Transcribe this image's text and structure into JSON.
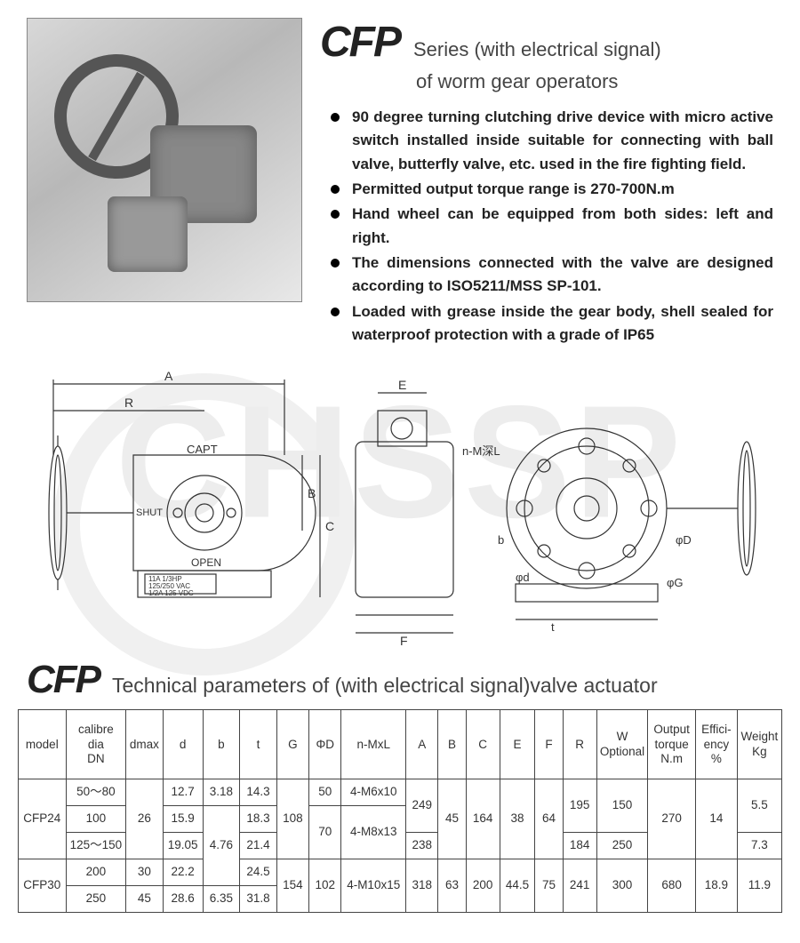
{
  "header": {
    "brand": "CFP",
    "title_line1": "Series (with electrical signal)",
    "title_line2": "of worm gear operators"
  },
  "features": [
    "90 degree turning clutching drive device with micro active switch installed inside suitable for connecting with ball valve, butterfly valve, etc. used in the fire fighting field.",
    "Permitted output torque range is 270-700N.m",
    "Hand wheel can be equipped from both sides: left and right.",
    "The dimensions connected with the valve are designed according to ISO5211/MSS SP-101.",
    "Loaded with grease inside the gear body, shell sealed for waterproof protection with a grade of IP65"
  ],
  "watermark": "CHSSP",
  "diagram": {
    "labels": {
      "A": "A",
      "R": "R",
      "B": "B",
      "C": "C",
      "E": "E",
      "F": "F",
      "capt": "CAPT",
      "shut": "SHUT",
      "open": "OPEN",
      "nML": "n-M深L",
      "phiD": "φD",
      "phid": "φd",
      "phiG": "φG",
      "b": "b",
      "t": "t",
      "plate1": "11A 1/3HP",
      "plate2": "125/250 VAC",
      "plate3": "1/2A 125 VDC"
    },
    "line_color": "#333333",
    "line_width": 1.2
  },
  "table": {
    "heading_brand": "CFP",
    "heading_text": "Technical parameters of (with electrical signal)valve actuator",
    "columns": [
      "model",
      "calibre dia DN",
      "dmax",
      "d",
      "b",
      "t",
      "G",
      "ΦD",
      "n-MxL",
      "A",
      "B",
      "C",
      "E",
      "F",
      "R",
      "W Optional",
      "Output torque N.m",
      "Effici-ency %",
      "Weight Kg"
    ],
    "col_widths_pct": [
      6.2,
      7.8,
      4.8,
      5.2,
      4.8,
      4.8,
      4.2,
      4.2,
      8.4,
      4.2,
      3.6,
      4.4,
      4.6,
      3.6,
      4.4,
      6.4,
      6.2,
      5.4,
      5.8
    ],
    "rows_raw": [
      [
        "CFP24",
        "50～80",
        "26",
        "12.7",
        "3.18",
        "14.3",
        "108",
        "50",
        "4-M6x10",
        "249",
        "45",
        "164",
        "38",
        "64",
        "195",
        "150",
        "270",
        "14",
        "5.5"
      ],
      [
        "",
        "100",
        "",
        "15.9",
        "4.76",
        "18.3",
        "",
        "70",
        "4-M8x13",
        "",
        "",
        "",
        "",
        "",
        "",
        "",
        "",
        "",
        ""
      ],
      [
        "",
        "125～150",
        "",
        "19.05",
        "",
        "21.4",
        "",
        "",
        "",
        "238",
        "",
        "",
        "",
        "",
        "184",
        "250",
        "",
        "",
        "7.3"
      ],
      [
        "CFP30",
        "200",
        "30",
        "22.2",
        "",
        "24.5",
        "154",
        "102",
        "4-M10x15",
        "318",
        "63",
        "200",
        "44.5",
        "75",
        "241",
        "300",
        "680",
        "18.9",
        "11.9"
      ],
      [
        "",
        "250",
        "45",
        "28.6",
        "6.35",
        "31.8",
        "",
        "",
        "",
        "",
        "",
        "",
        "",
        "",
        "",
        "",
        "",
        "",
        ""
      ]
    ]
  },
  "colors": {
    "text": "#333333",
    "border": "#444444",
    "bg": "#ffffff",
    "watermark": "#ededed"
  }
}
